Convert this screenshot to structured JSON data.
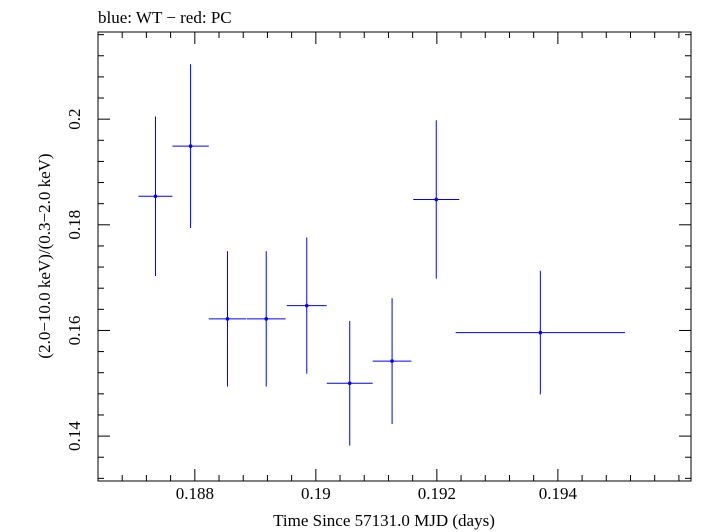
{
  "chart_data": {
    "type": "scatter",
    "title": "blue: WT − red: PC",
    "xlabel": "Time Since 57131.0 MJD (days)",
    "ylabel": "(2.0−10.0 keV)/(0.3−2.0 keV)",
    "xlim": [
      0.1864,
      0.1962
    ],
    "ylim": [
      0.1315,
      0.2165
    ],
    "x_ticks": [
      {
        "value": 0.188,
        "label": "0.188"
      },
      {
        "value": 0.19,
        "label": "0.19"
      },
      {
        "value": 0.192,
        "label": "0.192"
      },
      {
        "value": 0.194,
        "label": "0.194"
      }
    ],
    "y_ticks": [
      {
        "value": 0.14,
        "label": "0.14"
      },
      {
        "value": 0.16,
        "label": "0.16"
      },
      {
        "value": 0.18,
        "label": "0.18"
      },
      {
        "value": 0.2,
        "label": "0.2"
      }
    ],
    "grid": false,
    "series": [
      {
        "color": "#0000ff",
        "points": [
          {
            "x": 0.18735,
            "xerr": 0.00028,
            "y": 0.1854,
            "yerr": 0.0151
          },
          {
            "x": 0.18793,
            "xerr": 0.0003,
            "y": 0.1949,
            "yerr": 0.0155
          },
          {
            "x": 0.18854,
            "xerr": 0.00031,
            "y": 0.1622,
            "yerr": 0.0128
          },
          {
            "x": 0.18918,
            "xerr": 0.00032,
            "y": 0.1622,
            "yerr": 0.0128
          },
          {
            "x": 0.18985,
            "xerr": 0.00033,
            "y": 0.1647,
            "yerr": 0.0129
          },
          {
            "x": 0.19056,
            "xerr": 0.00038,
            "y": 0.15,
            "yerr": 0.0118
          },
          {
            "x": 0.19126,
            "xerr": 0.00032,
            "y": 0.1542,
            "yerr": 0.0119
          },
          {
            "x": 0.19199,
            "xerr": 0.00038,
            "y": 0.1848,
            "yerr": 0.015
          },
          {
            "x": 0.19371,
            "xerr": 0.0014,
            "y": 0.1596,
            "yerr": 0.0117
          }
        ]
      }
    ]
  }
}
